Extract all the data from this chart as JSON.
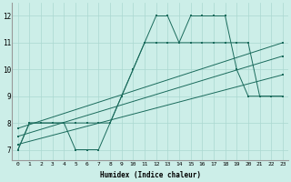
{
  "xlabel": "Humidex (Indice chaleur)",
  "background_color": "#cceee8",
  "grid_color": "#aad8d0",
  "line_color": "#1a6b5c",
  "xlim": [
    -0.5,
    23.5
  ],
  "ylim": [
    6.6,
    12.5
  ],
  "xticks": [
    0,
    1,
    2,
    3,
    4,
    5,
    6,
    7,
    8,
    9,
    10,
    11,
    12,
    13,
    14,
    15,
    16,
    17,
    18,
    19,
    20,
    21,
    22,
    23
  ],
  "yticks": [
    7,
    8,
    9,
    10,
    11,
    12
  ],
  "line1": [
    7,
    8,
    8,
    8,
    8,
    7,
    7,
    7,
    8,
    9,
    10,
    11,
    12,
    12,
    11,
    12,
    12,
    12,
    12,
    10,
    9,
    9,
    9,
    9
  ],
  "line2": [
    7,
    8,
    8,
    8,
    8,
    8,
    8,
    8,
    8,
    9,
    10,
    11,
    11,
    11,
    11,
    11,
    11,
    11,
    11,
    11,
    11,
    9,
    9,
    9
  ],
  "line3_x": [
    0,
    23
  ],
  "line3_y": [
    7.8,
    11.0
  ],
  "line4_x": [
    0,
    23
  ],
  "line4_y": [
    7.5,
    10.5
  ],
  "line5_x": [
    0,
    23
  ],
  "line5_y": [
    7.2,
    9.8
  ]
}
